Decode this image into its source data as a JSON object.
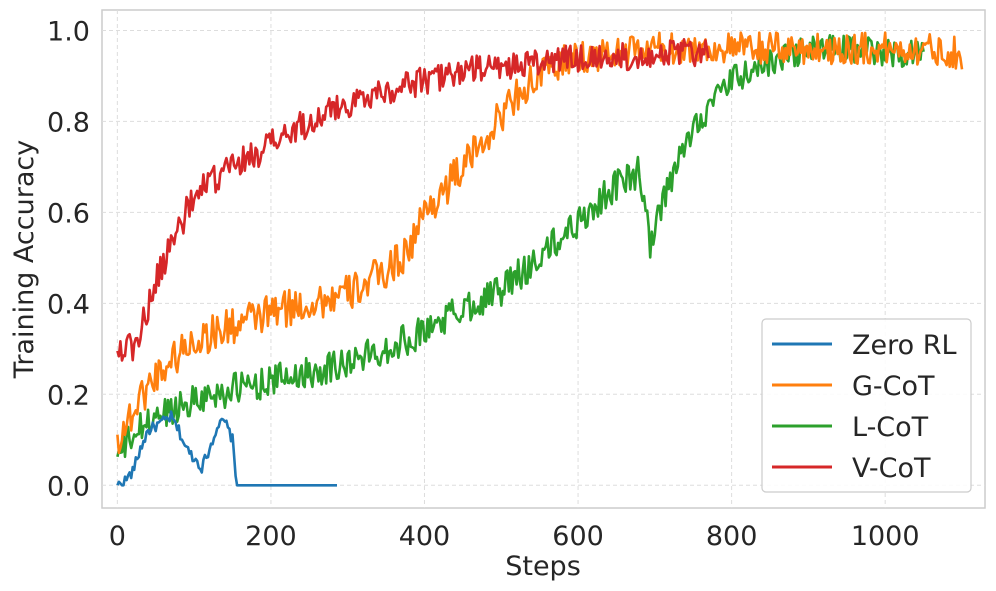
{
  "chart_data": {
    "type": "line",
    "xlabel": "Steps",
    "ylabel": "Training Accuracy",
    "xlim": [
      -20,
      1130
    ],
    "ylim": [
      -0.05,
      1.045
    ],
    "xticks": [
      0,
      200,
      400,
      600,
      800,
      1000
    ],
    "xtick_labels": [
      "0",
      "200",
      "400",
      "600",
      "800",
      "1000"
    ],
    "yticks": [
      0.0,
      0.2,
      0.4,
      0.6,
      0.8,
      1.0
    ],
    "ytick_labels": [
      "0.0",
      "0.2",
      "0.4",
      "0.6",
      "0.8",
      "1.0"
    ],
    "grid": true,
    "legend_position": "bottom-right",
    "series": [
      {
        "name": "Zero RL",
        "color": "#1f77b4",
        "x": [
          0,
          10,
          20,
          30,
          40,
          50,
          60,
          70,
          80,
          90,
          100,
          110,
          120,
          130,
          140,
          150,
          155,
          160,
          200,
          250,
          287
        ],
        "y": [
          0.0,
          0.01,
          0.03,
          0.08,
          0.12,
          0.13,
          0.14,
          0.15,
          0.12,
          0.08,
          0.06,
          0.04,
          0.08,
          0.13,
          0.14,
          0.1,
          0.0,
          0.0,
          0.0,
          0.0,
          0.0
        ]
      },
      {
        "name": "G-CoT",
        "color": "#ff7f0e",
        "x": [
          0,
          20,
          40,
          60,
          80,
          100,
          150,
          200,
          250,
          300,
          350,
          380,
          400,
          430,
          460,
          490,
          520,
          550,
          580,
          600,
          650,
          700,
          750,
          800,
          850,
          900,
          950,
          1000,
          1050,
          1100
        ],
        "y": [
          0.1,
          0.16,
          0.22,
          0.26,
          0.29,
          0.32,
          0.35,
          0.38,
          0.4,
          0.42,
          0.47,
          0.52,
          0.6,
          0.66,
          0.72,
          0.79,
          0.86,
          0.9,
          0.93,
          0.94,
          0.95,
          0.96,
          0.96,
          0.96,
          0.96,
          0.96,
          0.96,
          0.96,
          0.96,
          0.95
        ]
      },
      {
        "name": "L-CoT",
        "color": "#2ca02c",
        "x": [
          0,
          20,
          50,
          100,
          150,
          200,
          250,
          300,
          350,
          400,
          450,
          500,
          550,
          600,
          650,
          680,
          695,
          710,
          750,
          800,
          850,
          900,
          950,
          1000,
          1050
        ],
        "y": [
          0.06,
          0.11,
          0.15,
          0.19,
          0.21,
          0.23,
          0.25,
          0.27,
          0.3,
          0.34,
          0.39,
          0.43,
          0.5,
          0.58,
          0.66,
          0.69,
          0.52,
          0.62,
          0.79,
          0.89,
          0.93,
          0.96,
          0.96,
          0.95,
          0.95
        ]
      },
      {
        "name": "V-CoT",
        "color": "#d62728",
        "x": [
          0,
          10,
          20,
          30,
          40,
          50,
          60,
          80,
          100,
          125,
          150,
          200,
          250,
          300,
          350,
          400,
          450,
          500,
          550,
          600,
          650,
          700,
          750,
          770
        ],
        "y": [
          0.3,
          0.31,
          0.3,
          0.34,
          0.39,
          0.44,
          0.49,
          0.57,
          0.63,
          0.67,
          0.7,
          0.75,
          0.8,
          0.84,
          0.87,
          0.89,
          0.91,
          0.92,
          0.93,
          0.94,
          0.94,
          0.95,
          0.95,
          0.95
        ]
      }
    ]
  }
}
